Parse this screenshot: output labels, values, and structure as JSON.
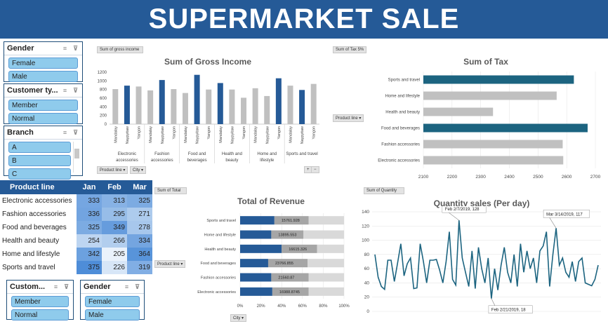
{
  "title": "SUPERMARKET SALE",
  "colors": {
    "header": "#255a97",
    "highlight": "#255a97",
    "bar_gray": "#c0c0c0",
    "tax_highlight": "#1c6480",
    "line": "#1c6480"
  },
  "slicers": {
    "gender_top": {
      "title": "Gender",
      "items": [
        "Female",
        "Male"
      ]
    },
    "customer_type_top": {
      "title": "Customer ty...",
      "items": [
        "Member",
        "Normal"
      ]
    },
    "branch": {
      "title": "Branch",
      "items": [
        "A",
        "B",
        "C"
      ]
    },
    "customer_bottom": {
      "title": "Custom...",
      "items": [
        "Member",
        "Normal"
      ]
    },
    "gender_bottom": {
      "title": "Gender",
      "items": [
        "Female",
        "Male"
      ]
    }
  },
  "field_buttons": {
    "gross_income": "Sum of gross income",
    "tax": "Sum of Tax 5%",
    "product_line_1": "Product line",
    "city_1": "City",
    "product_line_2": "Product line",
    "total": "Sum of Total",
    "product_line_3": "Product line",
    "city_3": "City",
    "quantity": "Sum of Quantity"
  },
  "pivot_table": {
    "headers": [
      "Product line",
      "Jan",
      "Feb",
      "Mar"
    ],
    "rows": [
      {
        "label": "Electronic accessories",
        "values": [
          333,
          313,
          325
        ]
      },
      {
        "label": "Fashion accessories",
        "values": [
          336,
          295,
          271
        ]
      },
      {
        "label": "Food and beverages",
        "values": [
          325,
          349,
          278
        ]
      },
      {
        "label": "Health and beauty",
        "values": [
          254,
          266,
          334
        ]
      },
      {
        "label": "Home and lifestyle",
        "values": [
          342,
          205,
          364
        ]
      },
      {
        "label": "Sports and travel",
        "values": [
          375,
          226,
          319
        ]
      }
    ]
  },
  "chart_data": [
    {
      "type": "bar",
      "title": "Sum of Gross Income",
      "ylim": [
        0,
        1200
      ],
      "yticks": [
        "0",
        "200",
        "400",
        "600",
        "800",
        "1000",
        "1200"
      ],
      "groups": [
        {
          "name": "Electronic accessories",
          "lines": [
            "Electronic",
            "accessories"
          ],
          "cities": [
            "Mandalay",
            "Naypyitaw",
            "Yangon"
          ],
          "values": [
            810,
            890,
            870
          ],
          "highlight": [
            false,
            true,
            false
          ]
        },
        {
          "name": "Fashion accessories",
          "lines": [
            "Fashion",
            "accessories"
          ],
          "cities": [
            "Mandalay",
            "Naypyitaw",
            "Yangon"
          ],
          "values": [
            780,
            1020,
            810
          ],
          "highlight": [
            false,
            true,
            false
          ]
        },
        {
          "name": "Food and beverages",
          "lines": [
            "Food and",
            "beverages"
          ],
          "cities": [
            "Mandalay",
            "Naypyitaw",
            "Yangon"
          ],
          "values": [
            720,
            1140,
            800
          ],
          "highlight": [
            false,
            true,
            false
          ]
        },
        {
          "name": "Health and beauty",
          "lines": [
            "Health and",
            "beauty"
          ],
          "cities": [
            "Mandalay",
            "Naypyitaw",
            "Yangon"
          ],
          "values": [
            950,
            800,
            610
          ],
          "highlight": [
            true,
            false,
            false
          ]
        },
        {
          "name": "Home and lifestyle",
          "lines": [
            "Home and",
            "lifestyle"
          ],
          "cities": [
            "Mandalay",
            "Naypyitaw",
            "Yangon"
          ],
          "values": [
            830,
            650,
            1060
          ],
          "highlight": [
            false,
            false,
            true
          ]
        },
        {
          "name": "Sports and travel",
          "lines": [
            "Sports and travel"
          ],
          "cities": [
            "Mandalay",
            "Naypyitaw",
            "Yangon"
          ],
          "values": [
            890,
            790,
            930
          ],
          "highlight": [
            false,
            true,
            false
          ]
        }
      ]
    },
    {
      "type": "bar",
      "title": "Sum of Tax",
      "xlim": [
        2100,
        2700
      ],
      "xticks": [
        "2100",
        "2200",
        "2300",
        "2400",
        "2500",
        "2600",
        "2700"
      ],
      "categories": [
        "Sports and travel",
        "Home and lifestyle",
        "Health and beauty",
        "Food and beverages",
        "Fashion accessories",
        "Electronic accessories"
      ],
      "values": [
        2625,
        2565,
        2343,
        2673,
        2586,
        2588
      ],
      "highlight": [
        true,
        false,
        false,
        true,
        false,
        false
      ]
    },
    {
      "type": "bar",
      "title": "Total of Revenue",
      "xticks": [
        "0%",
        "20%",
        "40%",
        "60%",
        "80%",
        "100%"
      ],
      "categories": [
        "Sports and travel",
        "Home and lifestyle",
        "Health and beauty",
        "Food and beverages",
        "Fashion accessories",
        "Electronic accessories"
      ],
      "labels": [
        "15761.928",
        "13895.553",
        "16615.326",
        "23766.855",
        "21560.87",
        "16988.8745"
      ],
      "segments": [
        [
          0.33,
          0.33
        ],
        [
          0.3,
          0.31
        ],
        [
          0.4,
          0.34
        ],
        [
          0.27,
          0.38
        ],
        [
          0.3,
          0.36
        ],
        [
          0.31,
          0.35
        ]
      ]
    },
    {
      "type": "line",
      "title": "Quantity sales (Per day)",
      "ylim": [
        0,
        140
      ],
      "yticks": [
        "0",
        "20",
        "40",
        "60",
        "80",
        "100",
        "120",
        "140"
      ],
      "values": [
        80,
        48,
        35,
        31,
        72,
        72,
        42,
        68,
        95,
        50,
        67,
        75,
        32,
        33,
        95,
        70,
        40,
        72,
        72,
        73,
        58,
        40,
        70,
        112,
        45,
        37,
        128,
        75,
        55,
        35,
        85,
        32,
        90,
        60,
        40,
        75,
        18,
        60,
        30,
        65,
        90,
        55,
        40,
        80,
        35,
        95,
        55,
        85,
        60,
        75,
        40,
        85,
        92,
        112,
        35,
        80,
        117,
        65,
        75,
        55,
        48,
        70,
        42,
        70,
        75,
        40,
        38,
        36,
        45,
        65
      ],
      "annotations": [
        {
          "text": "Feb 2/7/2019, 128",
          "index": 26
        },
        {
          "text": "Mar 3/14/2019, 117",
          "index": 56
        },
        {
          "text": "Feb 2/21/2019, 18",
          "index": 36
        }
      ]
    }
  ]
}
